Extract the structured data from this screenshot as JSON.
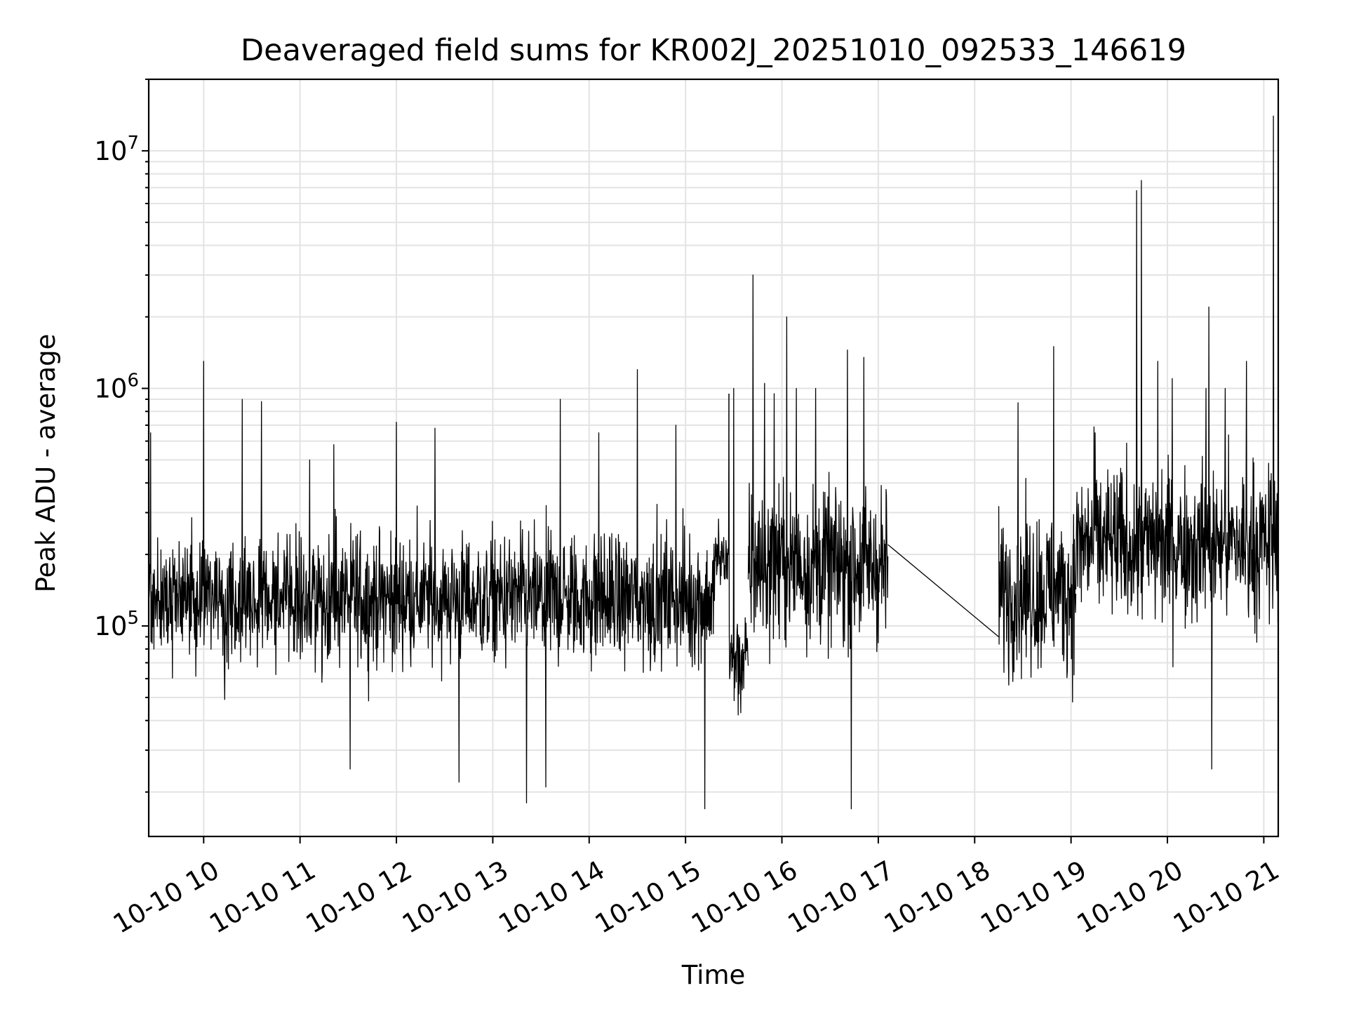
{
  "chart_data": {
    "type": "line",
    "title": "Deaveraged field sums for KR002J_20251010_092533_146619",
    "xlabel": "Time",
    "ylabel": "Peak ADU - average",
    "yscale": "log",
    "ylim": [
      13000,
      20000000
    ],
    "xlim_hours": [
      9.43,
      21.15
    ],
    "x_tick_hours": [
      10,
      11,
      12,
      13,
      14,
      15,
      16,
      17,
      18,
      19,
      20,
      21
    ],
    "x_tick_labels": [
      "10-10 10",
      "10-10 11",
      "10-10 12",
      "10-10 13",
      "10-10 14",
      "10-10 15",
      "10-10 16",
      "10-10 17",
      "10-10 18",
      "10-10 19",
      "10-10 20",
      "10-10 21"
    ],
    "y_ticks": [
      {
        "value": 100000,
        "base": "10",
        "exp": "5"
      },
      {
        "value": 1000000,
        "base": "10",
        "exp": "6"
      },
      {
        "value": 10000000,
        "base": "10",
        "exp": "7"
      }
    ],
    "grid": true,
    "series": [
      {
        "name": "Peak ADU - average",
        "color": "#000000",
        "segments": [
          {
            "start_hour": 9.43,
            "end_hour": 15.3,
            "median": 130000,
            "noise_decades": 0.25
          },
          {
            "start_hour": 15.3,
            "end_hour": 15.45,
            "median": 190000,
            "noise_decades": 0.15
          },
          {
            "start_hour": 15.45,
            "end_hour": 15.65,
            "median": 70000,
            "noise_decades": 0.2
          },
          {
            "start_hour": 15.65,
            "end_hour": 17.1,
            "median": 180000,
            "noise_decades": 0.3
          },
          {
            "start_hour": 18.25,
            "end_hour": 19.05,
            "median": 140000,
            "noise_decades": 0.3
          },
          {
            "start_hour": 19.05,
            "end_hour": 21.15,
            "median": 220000,
            "noise_decades": 0.3
          }
        ],
        "gap_line": [
          [
            17.1,
            220000
          ],
          [
            18.25,
            90000
          ]
        ],
        "spikes": [
          [
            9.45,
            650000
          ],
          [
            10.0,
            1300000
          ],
          [
            10.4,
            900000
          ],
          [
            10.6,
            880000
          ],
          [
            11.1,
            500000
          ],
          [
            11.35,
            580000
          ],
          [
            11.52,
            25000
          ],
          [
            12.0,
            720000
          ],
          [
            12.4,
            680000
          ],
          [
            12.65,
            22000
          ],
          [
            13.35,
            18000
          ],
          [
            13.55,
            21000
          ],
          [
            13.7,
            900000
          ],
          [
            14.1,
            650000
          ],
          [
            14.5,
            1200000
          ],
          [
            14.9,
            700000
          ],
          [
            15.2,
            17000
          ],
          [
            15.45,
            950000
          ],
          [
            15.5,
            1000000
          ],
          [
            15.7,
            3000000
          ],
          [
            15.82,
            1050000
          ],
          [
            15.92,
            950000
          ],
          [
            16.05,
            2000000
          ],
          [
            16.15,
            1000000
          ],
          [
            16.35,
            1000000
          ],
          [
            16.68,
            1450000
          ],
          [
            16.72,
            17000
          ],
          [
            16.85,
            1350000
          ],
          [
            18.45,
            870000
          ],
          [
            18.82,
            1500000
          ],
          [
            19.25,
            650000
          ],
          [
            19.68,
            6800000
          ],
          [
            19.73,
            7500000
          ],
          [
            19.9,
            1300000
          ],
          [
            20.05,
            1100000
          ],
          [
            20.4,
            1000000
          ],
          [
            20.43,
            2200000
          ],
          [
            20.46,
            25000
          ],
          [
            20.6,
            1000000
          ],
          [
            20.82,
            1300000
          ],
          [
            21.1,
            14000000
          ]
        ]
      }
    ]
  }
}
